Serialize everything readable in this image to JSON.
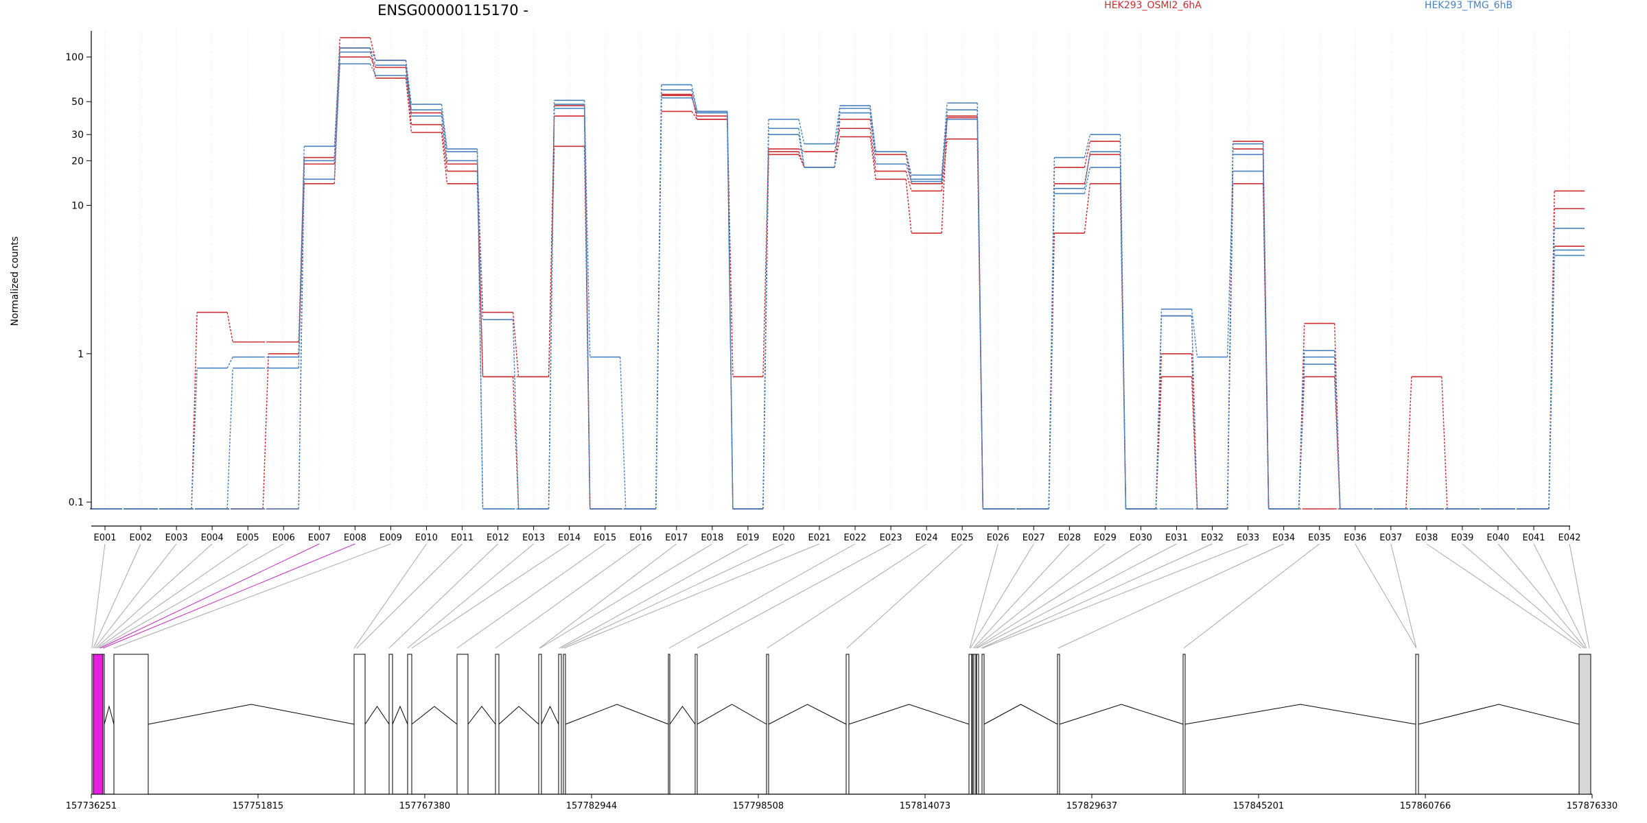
{
  "chart_data": {
    "type": "line",
    "title": "ENSG00000115170 -",
    "xlabel": "",
    "ylabel": "Normalized counts",
    "y_scale": "log",
    "ylim": [
      0.09,
      150
    ],
    "yticks": [
      0.1,
      1,
      10,
      20,
      30,
      50,
      100
    ],
    "ytick_labels": [
      "0.1",
      "1",
      "10",
      "20",
      "30",
      "50",
      "100"
    ],
    "grid": "vertical dotted at exon centers",
    "legend": {
      "placement": "top",
      "entries": [
        {
          "label": "HEK293_OSMI2_6hA",
          "color": "#cc2b2f"
        },
        {
          "label": "HEK293_TMG_6hB",
          "color": "#4781be"
        }
      ]
    },
    "categories": [
      "E001",
      "E002",
      "E003",
      "E004",
      "E005",
      "E006",
      "E007",
      "E008",
      "E009",
      "E010",
      "E011",
      "E012",
      "E013",
      "E014",
      "E015",
      "E016",
      "E017",
      "E018",
      "E019",
      "E020",
      "E021",
      "E022",
      "E023",
      "E024",
      "E025",
      "E026",
      "E027",
      "E028",
      "E029",
      "E030",
      "E031",
      "E032",
      "E033",
      "E034",
      "E035",
      "E036",
      "E037",
      "E038",
      "E039",
      "E040",
      "E041",
      "E042"
    ],
    "series": [
      {
        "color": "#cc2b2f",
        "values": [
          0.09,
          0.09,
          0.09,
          1.9,
          1.2,
          1.2,
          21,
          135,
          95,
          42,
          19,
          1.9,
          0.7,
          40,
          0.09,
          0.09,
          55,
          40,
          0.7,
          24,
          23,
          33,
          17,
          12.5,
          28,
          0.09,
          0.09,
          18,
          27,
          0.09,
          1.0,
          0.09,
          27,
          0.09,
          1.6,
          0.09,
          0.09,
          0.7,
          0.09,
          0.09,
          0.09,
          12.5
        ]
      },
      {
        "color": "#cc2b2f",
        "values": [
          0.09,
          0.09,
          0.09,
          0.09,
          0.09,
          1.0,
          14,
          115,
          72,
          31,
          14,
          0.7,
          0.7,
          25,
          0.09,
          0.09,
          43,
          38,
          0.09,
          22,
          18,
          29,
          15,
          6.5,
          40,
          0.09,
          0.09,
          6.5,
          14,
          0.09,
          0.7,
          0.09,
          14,
          0.09,
          0.7,
          0.09,
          0.09,
          0.09,
          0.09,
          0.09,
          0.09,
          9.5
        ]
      },
      {
        "color": "#cc2b2f",
        "values": [
          0.09,
          0.09,
          0.09,
          0.09,
          0.09,
          0.09,
          19,
          100,
          85,
          35,
          17,
          0.7,
          0.09,
          47,
          0.09,
          0.09,
          56,
          38,
          0.09,
          23,
          18,
          38,
          22,
          14,
          39,
          0.09,
          0.09,
          14,
          22,
          0.09,
          1.8,
          0.09,
          24,
          0.09,
          0.09,
          0.09,
          0.09,
          0.09,
          0.09,
          0.09,
          0.09,
          5.3
        ]
      },
      {
        "color": "#4781be",
        "values": [
          0.09,
          0.09,
          0.09,
          0.8,
          0.95,
          0.95,
          25,
          115,
          95,
          48,
          24,
          0.09,
          0.09,
          51,
          0.95,
          0.09,
          65,
          43,
          0.09,
          38,
          26,
          47,
          23,
          16,
          49,
          0.09,
          0.09,
          21,
          30,
          0.09,
          2.0,
          0.95,
          17,
          0.09,
          1.05,
          0.09,
          0.09,
          0.09,
          0.09,
          0.09,
          0.09,
          7.0
        ]
      },
      {
        "color": "#4781be",
        "values": [
          0.09,
          0.09,
          0.09,
          0.09,
          0.8,
          0.8,
          15,
          90,
          75,
          40,
          20,
          1.7,
          0.09,
          48,
          0.09,
          0.09,
          53,
          42,
          0.09,
          30,
          18,
          42,
          19,
          14.5,
          44,
          0.09,
          0.09,
          12,
          18,
          0.09,
          1.8,
          0.09,
          26,
          0.09,
          0.95,
          0.09,
          0.09,
          0.09,
          0.09,
          0.09,
          0.09,
          4.6
        ]
      },
      {
        "color": "#4781be",
        "values": [
          0.09,
          0.09,
          0.09,
          0.09,
          0.09,
          0.09,
          20,
          108,
          88,
          44,
          23,
          0.09,
          0.09,
          45,
          0.09,
          0.09,
          60,
          43,
          0.09,
          33,
          18,
          45,
          23,
          15,
          38,
          0.09,
          0.09,
          13,
          23,
          0.09,
          0.09,
          0.09,
          22,
          0.09,
          0.85,
          0.09,
          0.09,
          0.09,
          0.09,
          0.09,
          0.09,
          5.0
        ]
      }
    ],
    "gene_model": {
      "coordinate_labels": [
        "157736251",
        "157751815",
        "157767380",
        "157782944",
        "157798508",
        "157814073",
        "157829637",
        "157845201",
        "157860766",
        "157876330"
      ]
    }
  }
}
